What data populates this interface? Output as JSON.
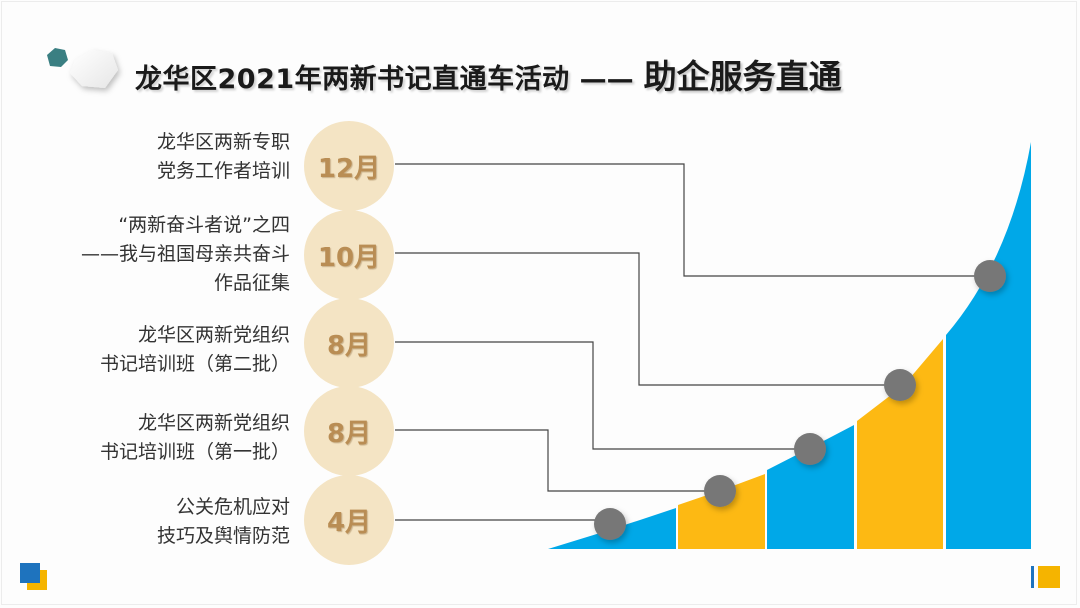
{
  "title": {
    "main": "龙华区2021年两新书记直通车活动",
    "dash": "——",
    "sub": "助企服务直通"
  },
  "events": [
    {
      "month": "12月",
      "lines": [
        "龙华区两新专职",
        "党务工作者培训"
      ]
    },
    {
      "month": "10月",
      "lines": [
        "“两新奋斗者说”之四",
        "——我与祖国母亲共奋斗",
        "作品征集"
      ]
    },
    {
      "month": "8月",
      "lines": [
        "龙华区两新党组织",
        "书记培训班（第二批）"
      ]
    },
    {
      "month": "8月",
      "lines": [
        "龙华区两新党组织",
        "书记培训班（第一批）"
      ]
    },
    {
      "month": "4月",
      "lines": [
        "公关危机应对",
        "技巧及舆情防范"
      ]
    }
  ],
  "colors": {
    "blue": "#00a8e8",
    "yellow": "#fdb913",
    "circle_fill": "#f4e4c4",
    "month_text": "#b98d54",
    "marker": "#777777",
    "line": "#444444",
    "hex_dark": "#3a7f82",
    "square_blue": "#1e73be",
    "square_yellow": "#f5b400"
  },
  "icons": [
    "hexagon-icon",
    "square-icon"
  ]
}
